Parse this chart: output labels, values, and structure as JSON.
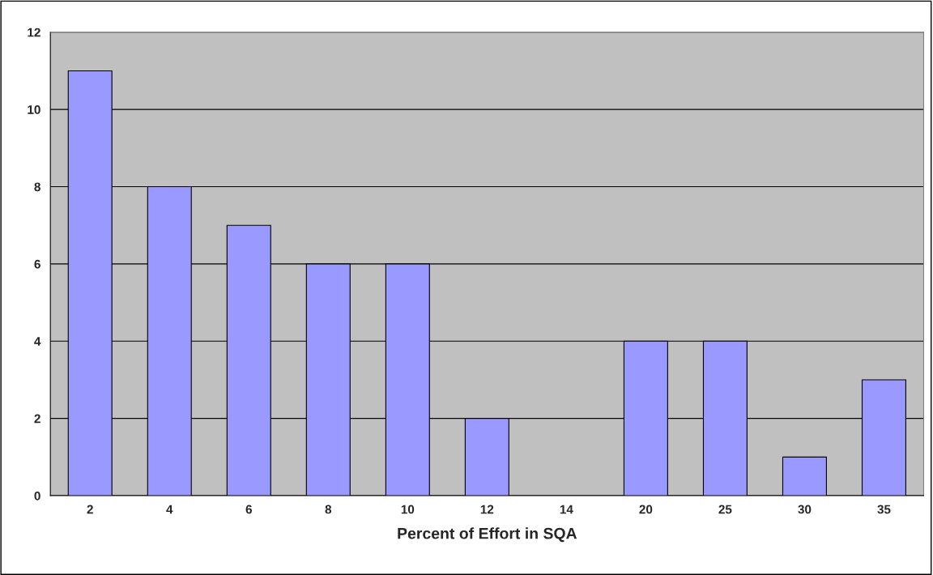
{
  "chart_data": {
    "type": "bar",
    "xlabel": "Percent of Effort in SQA",
    "categories": [
      "2",
      "4",
      "6",
      "8",
      "10",
      "12",
      "14",
      "20",
      "25",
      "30",
      "35"
    ],
    "values": [
      11,
      8,
      7,
      6,
      6,
      2,
      0,
      4,
      4,
      1,
      3
    ],
    "color": "#9999ff",
    "ylim": [
      0,
      12
    ],
    "yticks": [
      0,
      2,
      4,
      6,
      8,
      10,
      12
    ],
    "grid": "y"
  }
}
